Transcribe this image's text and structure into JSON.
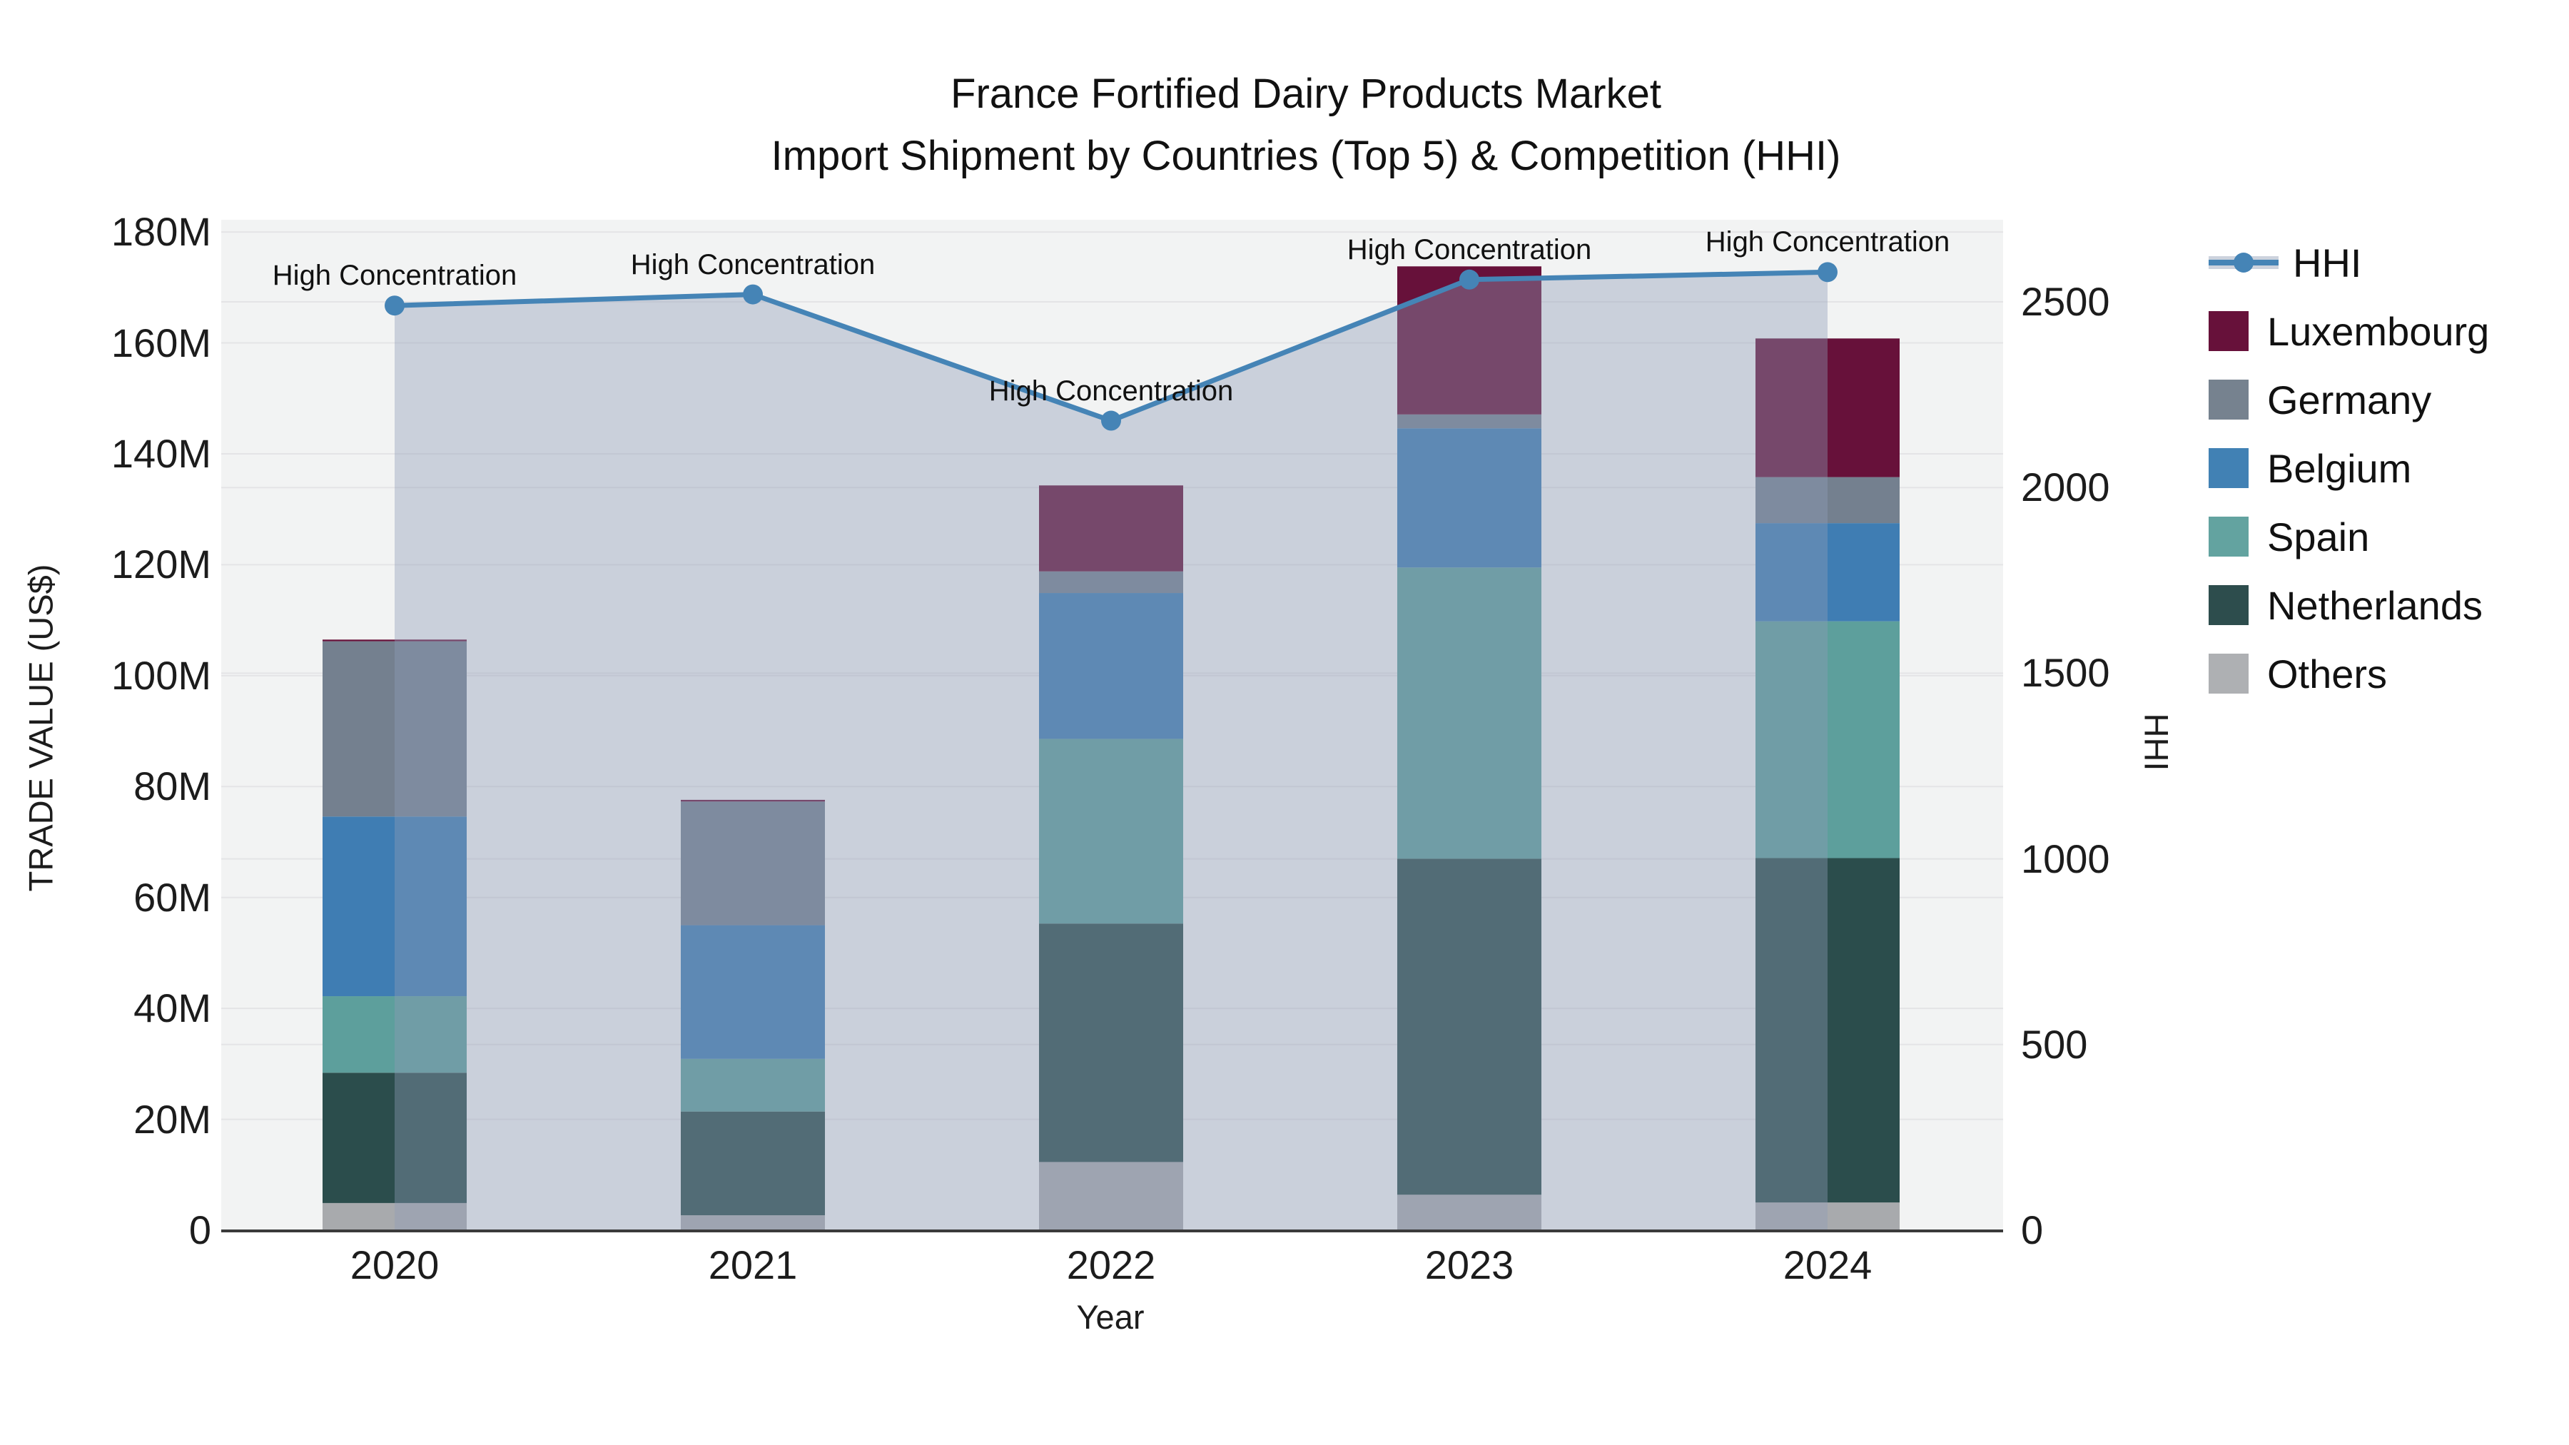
{
  "title": {
    "line1": "France Fortified Dairy Products Market",
    "line2": "Import Shipment by Countries (Top 5) & Competition (HHI)"
  },
  "chart_data": {
    "type": "bar",
    "subtype": "stacked-bars-with-line-overlay",
    "x": [
      "2020",
      "2021",
      "2022",
      "2023",
      "2024"
    ],
    "bar_unit": "million US$",
    "series": [
      {
        "name": "Others",
        "color": "#a8aaad",
        "values": [
          4.9,
          2.7,
          12.3,
          6.4,
          5.0
        ]
      },
      {
        "name": "Netherlands",
        "color": "#2b4d4c",
        "values": [
          23.5,
          18.7,
          43.0,
          60.6,
          62.1
        ]
      },
      {
        "name": "Spain",
        "color": "#5d9f9c",
        "values": [
          13.8,
          9.5,
          33.3,
          52.5,
          42.7
        ]
      },
      {
        "name": "Belgium",
        "color": "#3f7db3",
        "values": [
          32.4,
          24.1,
          26.3,
          25.1,
          17.7
        ]
      },
      {
        "name": "Germany",
        "color": "#74808f",
        "values": [
          31.6,
          22.3,
          3.9,
          2.5,
          8.3
        ]
      },
      {
        "name": "Luxembourg",
        "color": "#67113a",
        "values": [
          0.3,
          0.3,
          15.5,
          26.7,
          25.0
        ]
      }
    ],
    "line_series": {
      "name": "HHI",
      "color": "#4584b6",
      "area_fill": "#8f9ab6",
      "area_opacity": 0.4,
      "values": [
        2490,
        2520,
        2180,
        2560,
        2580
      ]
    },
    "annotations": {
      "text": "High Concentration",
      "applies_to_each_point": true
    },
    "y_left": {
      "title": "TRADE VALUE (US$)",
      "ylim": [
        0,
        182.2
      ],
      "ticks": [
        {
          "v": 0,
          "label": "0"
        },
        {
          "v": 20,
          "label": "20M"
        },
        {
          "v": 40,
          "label": "40M"
        },
        {
          "v": 60,
          "label": "60M"
        },
        {
          "v": 80,
          "label": "80M"
        },
        {
          "v": 100,
          "label": "100M"
        },
        {
          "v": 120,
          "label": "120M"
        },
        {
          "v": 140,
          "label": "140M"
        },
        {
          "v": 160,
          "label": "160M"
        },
        {
          "v": 180,
          "label": "180M"
        }
      ]
    },
    "y_right": {
      "title": "HHI",
      "ylim": [
        0,
        2721
      ],
      "ticks": [
        {
          "v": 0,
          "label": "0"
        },
        {
          "v": 500,
          "label": "500"
        },
        {
          "v": 1000,
          "label": "1000"
        },
        {
          "v": 1500,
          "label": "1500"
        },
        {
          "v": 2000,
          "label": "2000"
        },
        {
          "v": 2500,
          "label": "2500"
        }
      ]
    },
    "x_axis": {
      "title": "Year"
    },
    "grid": true,
    "legend_position": "right",
    "plot_bg": "#f2f3f3",
    "grid_color": "#e4e4e6",
    "axis_line_color": "#3b3b3b"
  },
  "legend": {
    "items": [
      {
        "label": "HHI",
        "type": "line",
        "color": "#4584b6"
      },
      {
        "label": "Luxembourg",
        "type": "swatch",
        "color": "#67113a"
      },
      {
        "label": "Germany",
        "type": "swatch",
        "color": "#76828f"
      },
      {
        "label": "Belgium",
        "type": "swatch",
        "color": "#4181b4"
      },
      {
        "label": "Spain",
        "type": "swatch",
        "color": "#63a3a0"
      },
      {
        "label": "Netherlands",
        "type": "swatch",
        "color": "#2d4d4d"
      },
      {
        "label": "Others",
        "type": "swatch",
        "color": "#aeb0b3"
      }
    ]
  }
}
